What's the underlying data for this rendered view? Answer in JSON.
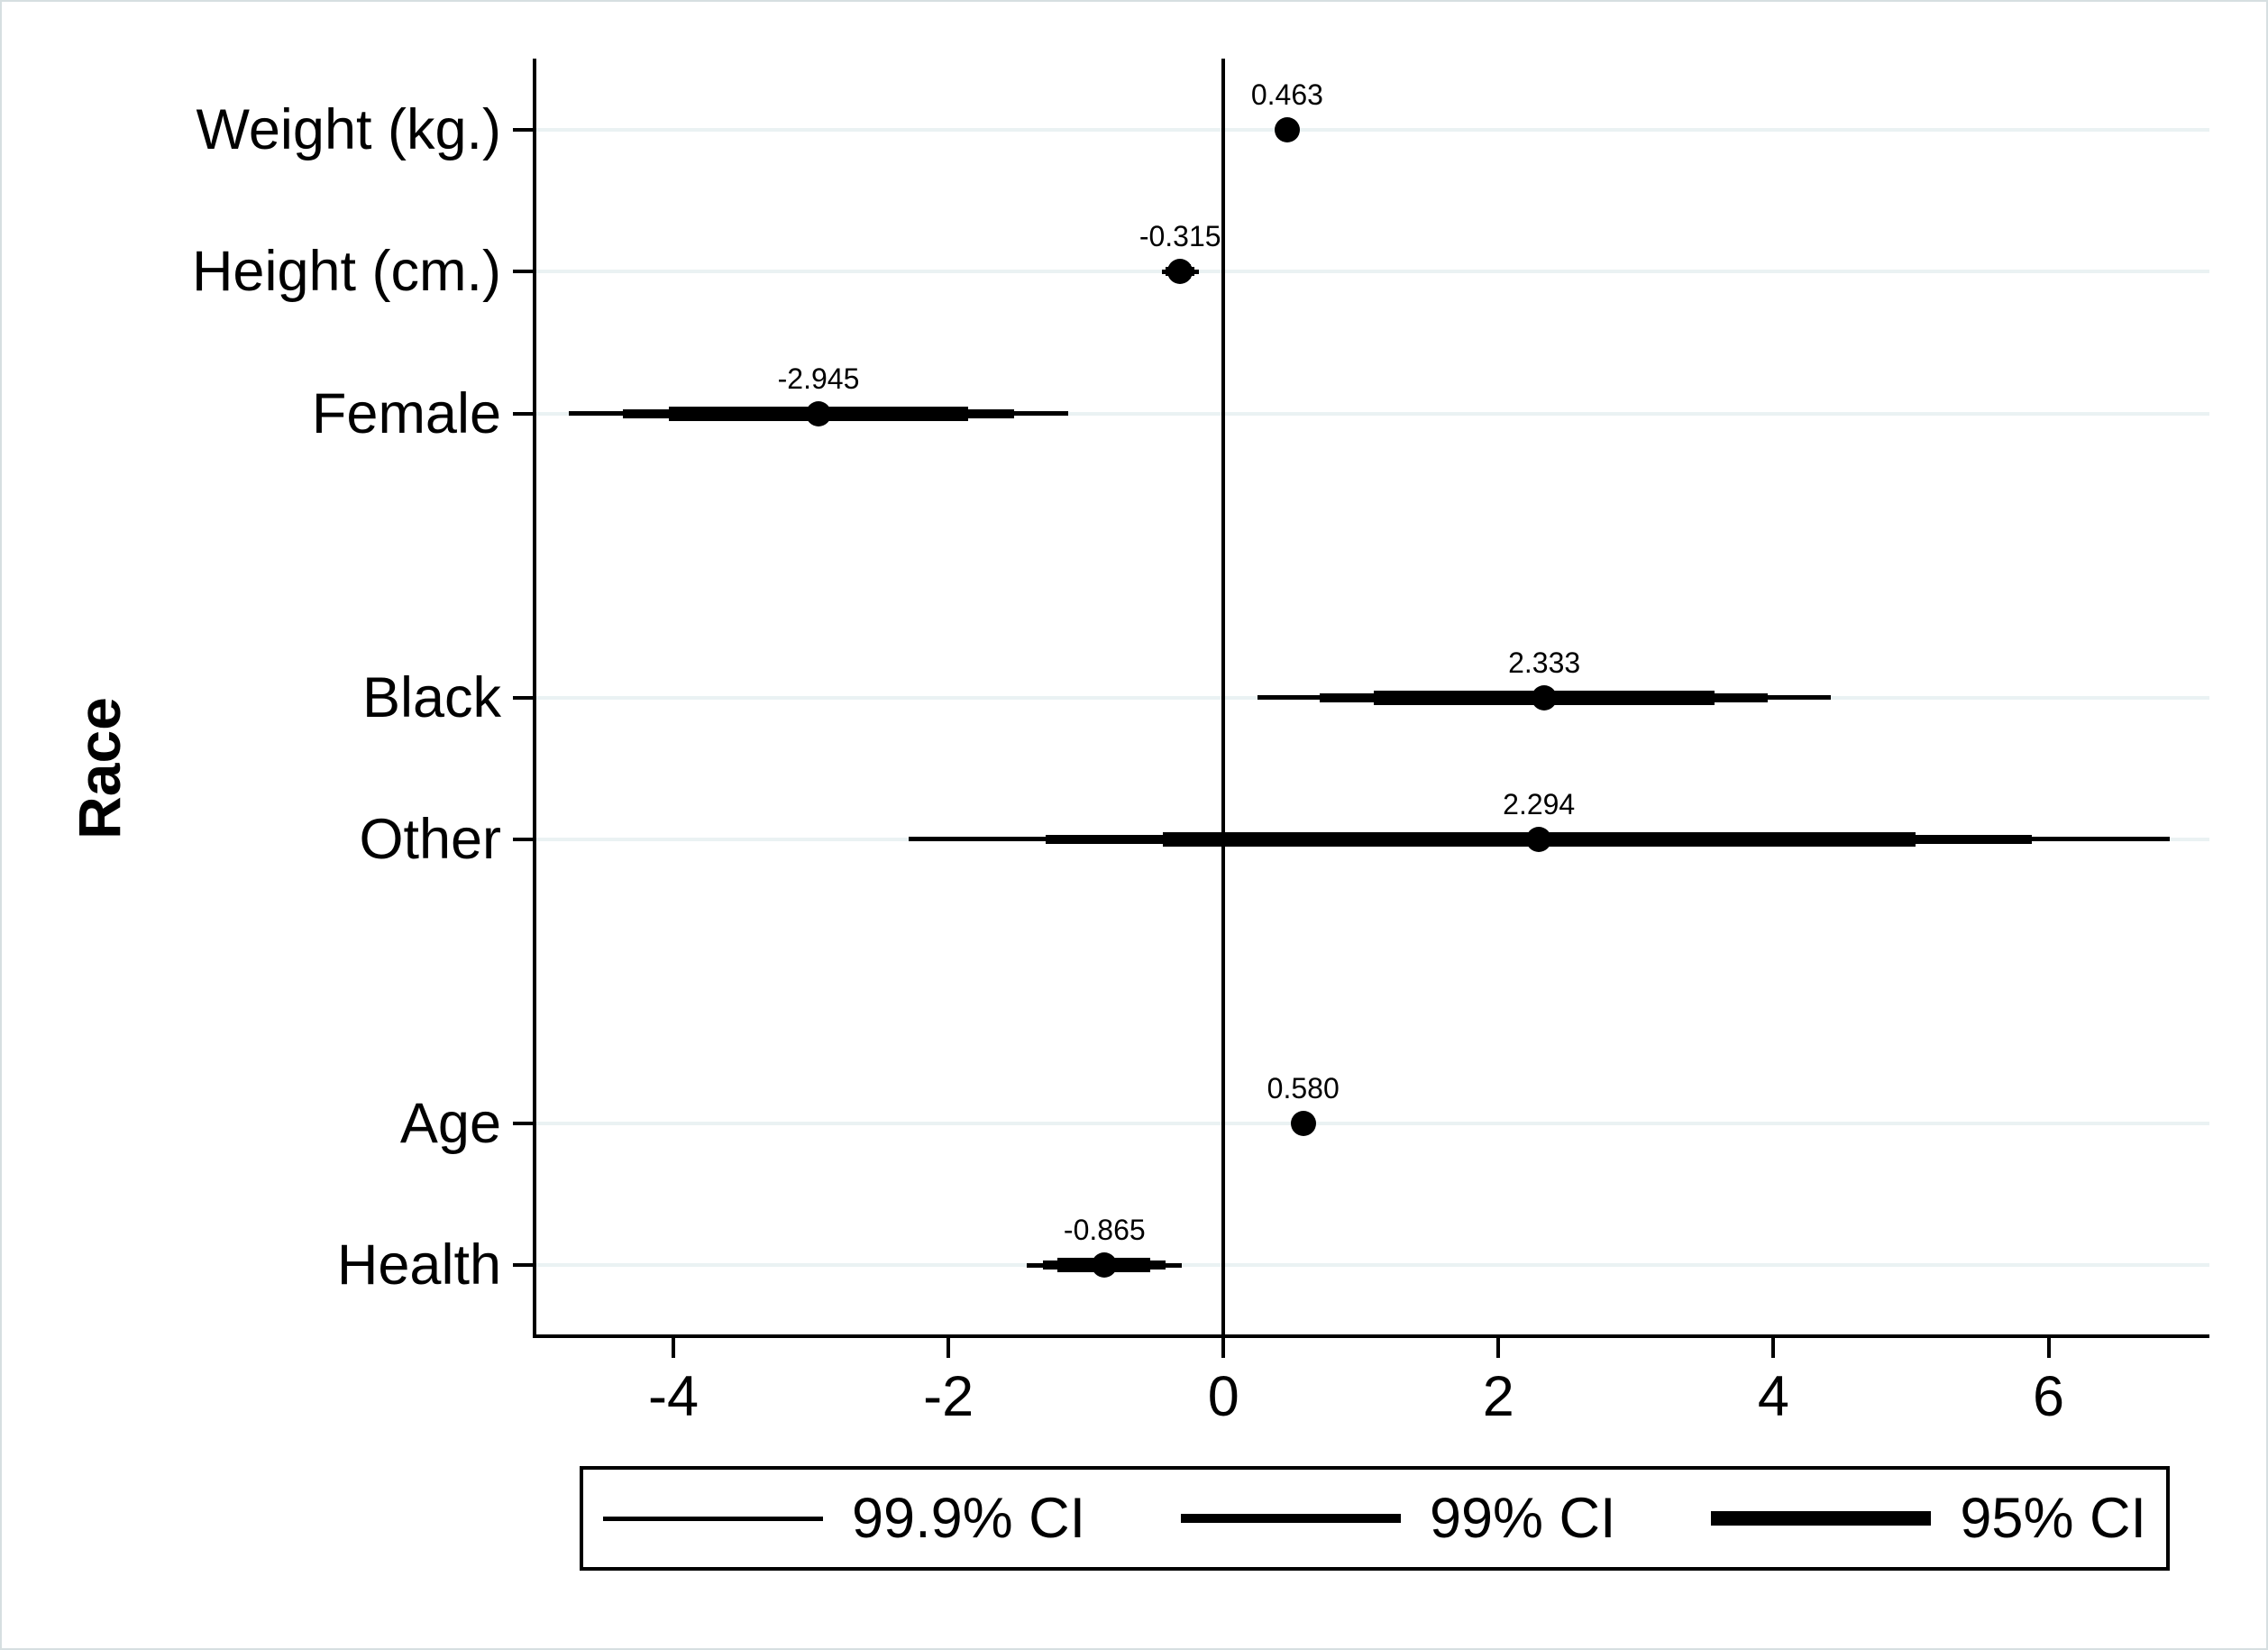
{
  "figure": {
    "y_axis_title": "Race",
    "background": "#ffffff",
    "grid_color": "#eaf2f3",
    "ink_color": "#000000"
  },
  "chart_data": {
    "type": "scatter",
    "subtype": "coefficient-dot-whisker",
    "orientation": "horizontal",
    "title": "",
    "xlabel": "",
    "ylabel": "Race",
    "x_ticks": [
      "-4",
      "-2",
      "0",
      "2",
      "4",
      "6"
    ],
    "x_tick_values": [
      -4,
      -2,
      0,
      2,
      4,
      6
    ],
    "xlim": [
      -5.01,
      7.17
    ],
    "ylim_slots": [
      0.5,
      9.5
    ],
    "zero_line_x": 0,
    "grid": true,
    "legend_position": "bottom",
    "categories": [
      "Weight (kg.)",
      "Height (cm.)",
      "Female",
      "Black",
      "Other",
      "Age",
      "Health"
    ],
    "points": [
      {
        "category": "Weight (kg.)",
        "slot": 1,
        "estimate": 0.463,
        "label": "0.463",
        "ci95": [
          0.41,
          0.51
        ],
        "ci99": [
          0.39,
          0.53
        ],
        "ci999": [
          0.38,
          0.54
        ]
      },
      {
        "category": "Height (cm.)",
        "slot": 2,
        "estimate": -0.315,
        "label": "-0.315",
        "ci95": [
          -0.39,
          -0.24
        ],
        "ci99": [
          -0.42,
          -0.21
        ],
        "ci999": [
          -0.45,
          -0.18
        ]
      },
      {
        "category": "Female",
        "slot": 3,
        "estimate": -2.945,
        "label": "-2.945",
        "ci95": [
          -4.03,
          -1.86
        ],
        "ci99": [
          -4.37,
          -1.52
        ],
        "ci999": [
          -4.76,
          -1.13
        ]
      },
      {
        "category": "Black",
        "slot": 5,
        "estimate": 2.333,
        "label": "2.333",
        "ci95": [
          1.09,
          3.57
        ],
        "ci99": [
          0.7,
          3.96
        ],
        "ci999": [
          0.25,
          4.42
        ]
      },
      {
        "category": "Other",
        "slot": 6,
        "estimate": 2.294,
        "label": "2.294",
        "ci95": [
          -0.44,
          5.03
        ],
        "ci99": [
          -1.29,
          5.88
        ],
        "ci999": [
          -2.29,
          6.88
        ]
      },
      {
        "category": "Age",
        "slot": 8,
        "estimate": 0.58,
        "label": "0.580",
        "ci95": [
          0.54,
          0.62
        ],
        "ci99": [
          0.52,
          0.64
        ],
        "ci999": [
          0.51,
          0.65
        ]
      },
      {
        "category": "Health",
        "slot": 9,
        "estimate": -0.865,
        "label": "-0.865",
        "ci95": [
          -1.21,
          -0.53
        ],
        "ci99": [
          -1.31,
          -0.42
        ],
        "ci999": [
          -1.43,
          -0.3
        ]
      }
    ],
    "legend": {
      "items": [
        {
          "label": "99.9% CI",
          "thickness": "thin"
        },
        {
          "label": "99% CI",
          "thickness": "medium"
        },
        {
          "label": "95% CI",
          "thickness": "thick"
        }
      ]
    }
  }
}
